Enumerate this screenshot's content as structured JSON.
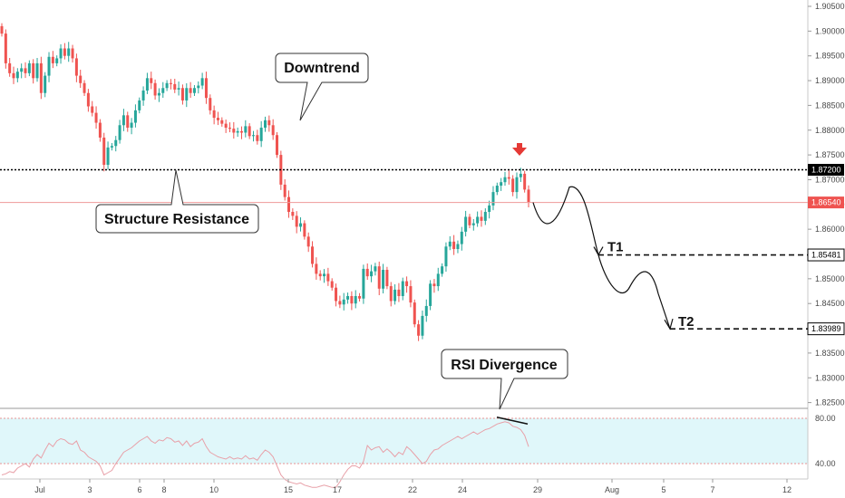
{
  "chart_data": {
    "type": "candlestick",
    "instrument_hint": "",
    "y_ticks": [
      "1.90500",
      "1.90000",
      "1.89500",
      "1.89000",
      "1.88500",
      "1.88000",
      "1.87500",
      "1.87000",
      "1.86500",
      "1.86000",
      "1.85500",
      "1.85000",
      "1.84500",
      "1.84000",
      "1.83500",
      "1.83000",
      "1.82500"
    ],
    "y_range": [
      1.8215,
      1.9065
    ],
    "x_ticks": [
      "Jul",
      "3",
      "6",
      "8",
      "10",
      "15",
      "17",
      "22",
      "24",
      "29",
      "Aug",
      "5",
      "7",
      "12"
    ],
    "price_labels": {
      "resistance": "1.87200",
      "current": "1.86540",
      "t1": "1.85481",
      "t2": "1.83989"
    },
    "levels": {
      "resistance": 1.872,
      "current": 1.8654,
      "t1": 1.85481,
      "t2": 1.83989
    },
    "colors": {
      "up": "#26a69a",
      "down": "#ef5350",
      "resistance_box": "#000000",
      "current_box": "#ef5350",
      "target_box": "#000000",
      "rsi_line": "#e8a0a8",
      "rsi_band": "#e0f7fa"
    },
    "annotations": {
      "structure_resistance": "Structure Resistance",
      "downtrend": "Downtrend",
      "rsi_divergence": "RSI Divergence",
      "t1": "T1",
      "t2": "T2"
    },
    "candles_close": [
      1.8995,
      1.8935,
      1.8915,
      1.8905,
      1.8918,
      1.8925,
      1.8915,
      1.8935,
      1.8905,
      1.8935,
      1.8875,
      1.891,
      1.8948,
      1.8935,
      1.8945,
      1.8965,
      1.895,
      1.8965,
      1.8945,
      1.891,
      1.8895,
      1.8875,
      1.8848,
      1.8835,
      1.8815,
      1.8785,
      1.873,
      1.8765,
      1.8768,
      1.878,
      1.881,
      1.883,
      1.8805,
      1.8815,
      1.884,
      1.886,
      1.888,
      1.8905,
      1.8895,
      1.887,
      1.8875,
      1.8885,
      1.8895,
      1.8893,
      1.8882,
      1.8885,
      1.886,
      1.8885,
      1.8875,
      1.8885,
      1.889,
      1.8905,
      1.8865,
      1.884,
      1.8825,
      1.882,
      1.8813,
      1.8805,
      1.8803,
      1.8795,
      1.8798,
      1.8795,
      1.8808,
      1.8788,
      1.879,
      1.8778,
      1.8805,
      1.882,
      1.881,
      1.879,
      1.875,
      1.869,
      1.8665,
      1.8635,
      1.8627,
      1.8605,
      1.8612,
      1.8585,
      1.8565,
      1.853,
      1.851,
      1.8505,
      1.851,
      1.8495,
      1.8482,
      1.8455,
      1.8448,
      1.8458,
      1.8465,
      1.845,
      1.8465,
      1.846,
      1.852,
      1.8505,
      1.8515,
      1.8525,
      1.848,
      1.8518,
      1.8485,
      1.8455,
      1.8478,
      1.8465,
      1.8495,
      1.8485,
      1.8452,
      1.8408,
      1.8385,
      1.8425,
      1.8445,
      1.849,
      1.8485,
      1.851,
      1.8525,
      1.8565,
      1.8575,
      1.856,
      1.857,
      1.8595,
      1.8625,
      1.8608,
      1.8612,
      1.8625,
      1.8617,
      1.8635,
      1.8648,
      1.8675,
      1.8688,
      1.8695,
      1.8705,
      1.8702,
      1.8675,
      1.8705,
      1.8712,
      1.868,
      1.8655
    ],
    "rsi": {
      "levels": [
        "80.00",
        "40.00"
      ],
      "upper": 80,
      "lower": 40,
      "values": [
        30,
        31,
        33,
        32,
        36,
        38,
        40,
        37,
        44,
        48,
        45,
        52,
        58,
        55,
        60,
        62,
        61,
        58,
        57,
        60,
        52,
        50,
        46,
        44,
        42,
        38,
        30,
        32,
        34,
        40,
        45,
        50,
        52,
        54,
        57,
        60,
        62,
        64,
        60,
        58,
        61,
        60,
        63,
        62,
        59,
        60,
        56,
        60,
        55,
        58,
        59,
        62,
        55,
        50,
        48,
        46,
        45,
        44,
        46,
        44,
        45,
        44,
        47,
        44,
        45,
        43,
        48,
        52,
        50,
        46,
        38,
        30,
        26,
        24,
        23,
        22,
        23,
        21,
        20,
        19,
        19,
        20,
        21,
        20,
        19,
        19,
        24,
        30,
        35,
        38,
        38,
        36,
        42,
        56,
        52,
        54,
        55,
        50,
        53,
        50,
        46,
        50,
        48,
        55,
        52,
        48,
        44,
        40,
        42,
        48,
        52,
        53,
        56,
        58,
        60,
        62,
        64,
        62,
        64,
        66,
        68,
        66,
        68,
        70,
        71,
        73,
        75,
        76,
        77,
        76,
        73,
        72,
        70,
        65,
        55
      ]
    }
  }
}
